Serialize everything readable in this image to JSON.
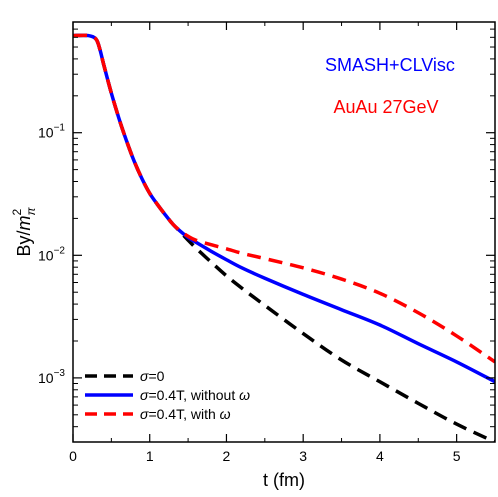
{
  "chart_data": {
    "type": "line",
    "xlabel": "t (fm)",
    "ylabel": "By/",
    "ylabel_math": "m",
    "ylabel_sup": "2",
    "ylabel_sub": "π",
    "y_scale": "log",
    "xlim": [
      0,
      5.5
    ],
    "ylim": [
      0.0003,
      0.8
    ],
    "x_ticks": [
      0,
      1,
      2,
      3,
      4,
      5
    ],
    "x_tick_labels": [
      "0",
      "1",
      "2",
      "3",
      "4",
      "5"
    ],
    "y_ticks": [
      0.001,
      0.01,
      0.1
    ],
    "y_tick_labels": [
      {
        "base": "10",
        "exp": "−3"
      },
      {
        "base": "10",
        "exp": "−2"
      },
      {
        "base": "10",
        "exp": "−1"
      }
    ],
    "grid": false,
    "legend_position": "bottom-left",
    "annotations": [
      {
        "text": "SMASH+CLVisc",
        "color": "#0000ff"
      },
      {
        "text": "AuAu 27GeV",
        "color": "#ff0000"
      }
    ],
    "series": [
      {
        "name": "=0",
        "legend_prefix": "σ",
        "color": "#000000",
        "style": "dashed",
        "x": [
          0,
          0.2,
          0.3,
          0.35,
          0.4,
          0.5,
          0.6,
          0.7,
          0.8,
          0.9,
          1.0,
          1.1,
          1.2,
          1.3,
          1.4,
          1.5,
          1.6,
          1.8,
          2.0,
          2.2,
          2.5,
          3.0,
          3.5,
          4.0,
          4.5,
          5.0,
          5.5
        ],
        "values": [
          0.62,
          0.62,
          0.58,
          0.48,
          0.36,
          0.21,
          0.13,
          0.085,
          0.058,
          0.042,
          0.032,
          0.026,
          0.0215,
          0.018,
          0.0155,
          0.0133,
          0.0115,
          0.0088,
          0.0068,
          0.0054,
          0.0039,
          0.0023,
          0.0014,
          0.00093,
          0.00062,
          0.00042,
          0.0003
        ]
      },
      {
        "name": "=0.4T, without ",
        "legend_prefix": "σ",
        "legend_suffix": "ω",
        "color": "#0000ff",
        "style": "solid",
        "x": [
          0,
          0.2,
          0.3,
          0.35,
          0.4,
          0.5,
          0.6,
          0.7,
          0.8,
          0.9,
          1.0,
          1.1,
          1.2,
          1.3,
          1.4,
          1.5,
          1.6,
          1.8,
          2.0,
          2.2,
          2.5,
          3.0,
          3.5,
          4.0,
          4.5,
          5.0,
          5.5
        ],
        "values": [
          0.62,
          0.62,
          0.58,
          0.48,
          0.36,
          0.21,
          0.13,
          0.085,
          0.058,
          0.042,
          0.032,
          0.026,
          0.0215,
          0.018,
          0.0157,
          0.014,
          0.0128,
          0.0108,
          0.0092,
          0.0079,
          0.0065,
          0.0048,
          0.0036,
          0.0027,
          0.0019,
          0.00135,
          0.00093
        ]
      },
      {
        "name": "=0.4T, with ",
        "legend_prefix": "σ",
        "legend_suffix": "ω",
        "color": "#ff0000",
        "style": "dashed",
        "x": [
          0,
          0.2,
          0.3,
          0.35,
          0.4,
          0.5,
          0.6,
          0.7,
          0.8,
          0.9,
          1.0,
          1.1,
          1.2,
          1.3,
          1.4,
          1.5,
          1.6,
          1.8,
          2.0,
          2.2,
          2.5,
          3.0,
          3.5,
          4.0,
          4.5,
          5.0,
          5.5
        ],
        "values": [
          0.62,
          0.62,
          0.58,
          0.48,
          0.36,
          0.21,
          0.13,
          0.085,
          0.058,
          0.042,
          0.032,
          0.026,
          0.0215,
          0.018,
          0.0158,
          0.0143,
          0.0133,
          0.0122,
          0.0113,
          0.0104,
          0.0094,
          0.0079,
          0.0064,
          0.0049,
          0.0034,
          0.0022,
          0.00135
        ]
      }
    ]
  }
}
